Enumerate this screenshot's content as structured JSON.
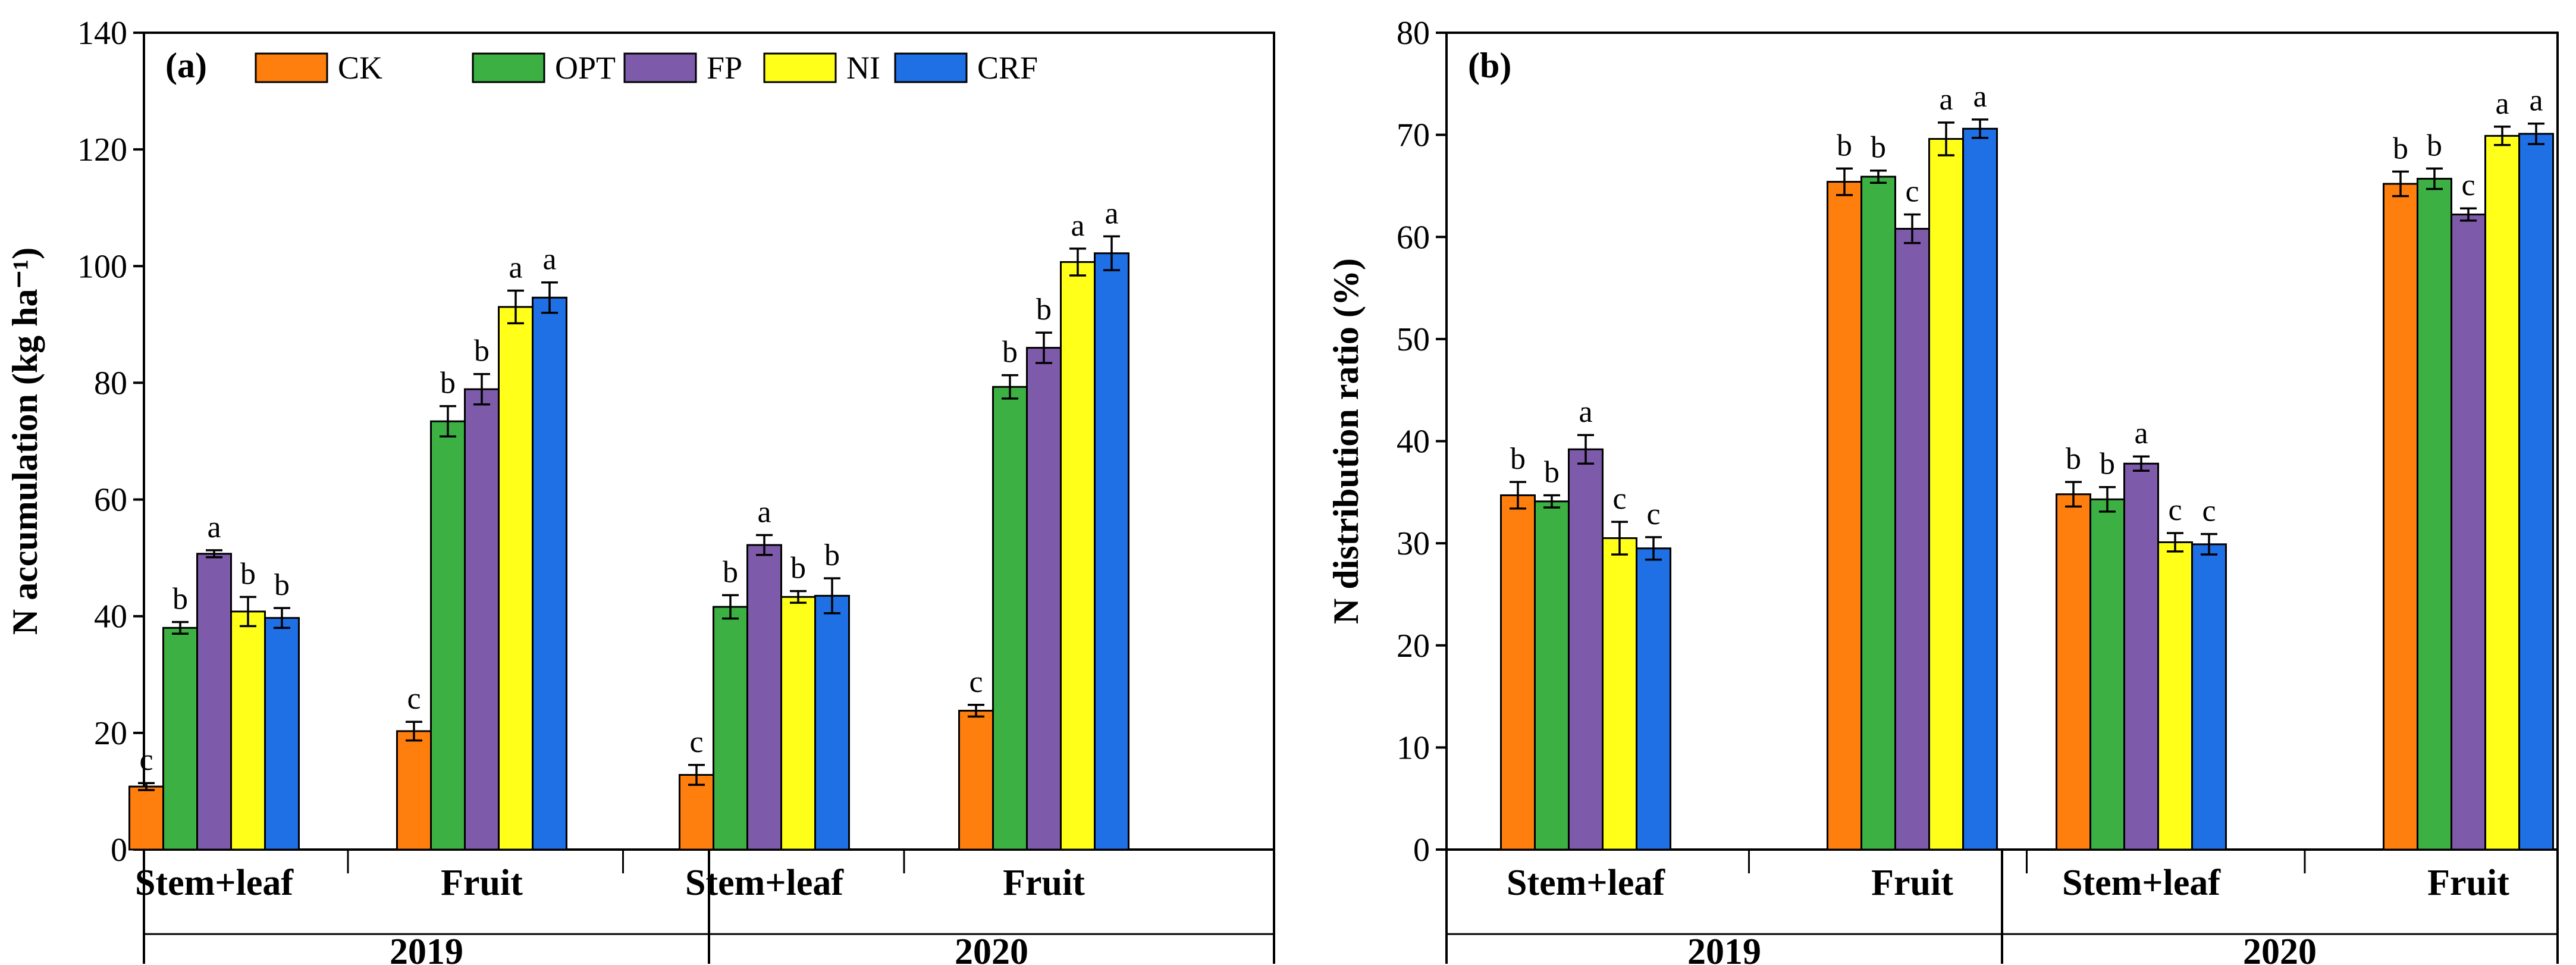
{
  "figure": {
    "series": [
      {
        "name": "CK",
        "color": "#ff7f0e"
      },
      {
        "name": "OPT",
        "color": "#3cb043"
      },
      {
        "name": "FP",
        "color": "#7e5baa"
      },
      {
        "name": "NI",
        "color": "#ffff1a"
      },
      {
        "name": "CRF",
        "color": "#1f6fe5"
      }
    ],
    "groups": [
      "Stem+leaf",
      "Fruit",
      "Stem+leaf",
      "Fruit"
    ],
    "years": [
      "2019",
      "2020"
    ]
  },
  "chart_data": [
    {
      "type": "bar",
      "panel_label": "(a)",
      "ylabel": "N accumulation (kg ha⁻¹)",
      "ylim": [
        0,
        140
      ],
      "yticks": [
        0,
        20,
        40,
        60,
        80,
        100,
        120,
        140
      ],
      "categories": [
        "Stem+leaf",
        "Fruit",
        "Stem+leaf",
        "Fruit"
      ],
      "years": [
        "2019",
        "2020"
      ],
      "legend_position": "top",
      "series": [
        {
          "name": "CK",
          "values": [
            10.8,
            20.3,
            12.8,
            23.8
          ],
          "errors": [
            0.6,
            1.6,
            1.7,
            1.0
          ],
          "letters": [
            "c",
            "c",
            "c",
            "c"
          ]
        },
        {
          "name": "OPT",
          "values": [
            38.0,
            73.4,
            41.6,
            79.3
          ],
          "errors": [
            1.0,
            2.6,
            2.0,
            2.0
          ],
          "letters": [
            "b",
            "b",
            "b",
            "b"
          ]
        },
        {
          "name": "FP",
          "values": [
            50.7,
            78.9,
            52.2,
            86.0
          ],
          "errors": [
            0.6,
            2.6,
            1.7,
            2.6
          ],
          "letters": [
            "a",
            "b",
            "a",
            "b"
          ]
        },
        {
          "name": "NI",
          "values": [
            40.8,
            93.0,
            43.3,
            100.7
          ],
          "errors": [
            2.5,
            2.8,
            1.0,
            2.3
          ],
          "letters": [
            "b",
            "a",
            "b",
            "a"
          ]
        },
        {
          "name": "CRF",
          "values": [
            39.7,
            94.6,
            43.5,
            102.2
          ],
          "errors": [
            1.7,
            2.6,
            3.0,
            2.9
          ],
          "letters": [
            "b",
            "a",
            "b",
            "a"
          ]
        }
      ]
    },
    {
      "type": "bar",
      "panel_label": "(b)",
      "ylabel": "N distribution ratio (%)",
      "ylim": [
        0,
        80
      ],
      "yticks": [
        0,
        10,
        20,
        30,
        40,
        50,
        60,
        70,
        80
      ],
      "categories": [
        "Stem+leaf",
        "Fruit",
        "Stem+leaf",
        "Fruit"
      ],
      "years": [
        "2019",
        "2020"
      ],
      "series": [
        {
          "name": "CK",
          "values": [
            34.7,
            65.4,
            34.8,
            65.2
          ],
          "errors": [
            1.3,
            1.3,
            1.2,
            1.2
          ],
          "letters": [
            "b",
            "b",
            "b",
            "b"
          ]
        },
        {
          "name": "OPT",
          "values": [
            34.1,
            65.9,
            34.3,
            65.7
          ],
          "errors": [
            0.6,
            0.6,
            1.2,
            1.0
          ],
          "letters": [
            "b",
            "b",
            "b",
            "b"
          ]
        },
        {
          "name": "FP",
          "values": [
            39.2,
            60.8,
            37.8,
            62.2
          ],
          "errors": [
            1.4,
            1.4,
            0.7,
            0.6
          ],
          "letters": [
            "a",
            "c",
            "a",
            "c"
          ]
        },
        {
          "name": "NI",
          "values": [
            30.5,
            69.6,
            30.1,
            69.9
          ],
          "errors": [
            1.6,
            1.6,
            0.9,
            0.9
          ],
          "letters": [
            "c",
            "a",
            "c",
            "a"
          ]
        },
        {
          "name": "CRF",
          "values": [
            29.5,
            70.6,
            29.9,
            70.1
          ],
          "errors": [
            1.1,
            0.9,
            1.0,
            1.0
          ],
          "letters": [
            "c",
            "a",
            "c",
            "a"
          ]
        }
      ]
    }
  ]
}
